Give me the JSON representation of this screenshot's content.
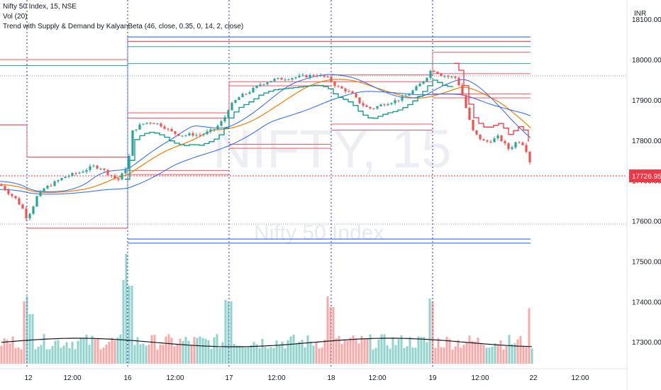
{
  "legend": {
    "symbol": "Nifty 50 Index, 15, NSE",
    "volume": "Vol (20)",
    "indicator": "Trend with Supply & Demand by KalyanBeta (46, close, 0.35, 0, 14, 2, close)"
  },
  "watermark": {
    "ticker": "NIFTY, 15",
    "name": "Nifty 50 Index"
  },
  "currency": "INR",
  "last_price_label": "17726.95",
  "colors": {
    "up": "#26a69a",
    "down": "#ef5350",
    "supply": "#f23645",
    "demand": "#2962ff",
    "trend_up": "#089981",
    "ema_orange": "#f57c00",
    "ema_blue": "#2962ff",
    "volume_ma": "#131722",
    "session_line": "#2a2ed8"
  },
  "chart_data": {
    "type": "candlestick",
    "title": "Nifty 50 Index, 15, NSE",
    "interval": "15",
    "x_tick_labels": [
      "12",
      "12:00",
      "16",
      "12:00",
      "17",
      "12:00",
      "18",
      "12:00",
      "19",
      "12:00",
      "22",
      "12:00"
    ],
    "y_tick_labels": [
      "18100.00",
      "18000.00",
      "17900.00",
      "17800.00",
      "17700.00",
      "17600.00",
      "17500.00",
      "17400.00",
      "17300.00"
    ],
    "ylim": [
      17260,
      18130
    ],
    "last_price": 17726.95,
    "sessions": [
      "12",
      "16",
      "17",
      "18",
      "19"
    ],
    "price_close_path": [
      [
        0,
        17690
      ],
      [
        12,
        17670
      ],
      [
        22,
        17655
      ],
      [
        32,
        17630
      ],
      [
        37,
        17610
      ],
      [
        44,
        17625
      ],
      [
        52,
        17660
      ],
      [
        62,
        17680
      ],
      [
        72,
        17690
      ],
      [
        82,
        17700
      ],
      [
        92,
        17710
      ],
      [
        102,
        17715
      ],
      [
        112,
        17720
      ],
      [
        122,
        17728
      ],
      [
        132,
        17735
      ],
      [
        142,
        17732
      ],
      [
        150,
        17720
      ],
      [
        158,
        17712
      ],
      [
        166,
        17700
      ],
      [
        172,
        17715
      ],
      [
        178,
        17735
      ],
      [
        182,
        17760
      ],
      [
        186,
        17820
      ],
      [
        192,
        17830
      ],
      [
        200,
        17840
      ],
      [
        210,
        17845
      ],
      [
        220,
        17842
      ],
      [
        230,
        17835
      ],
      [
        240,
        17822
      ],
      [
        250,
        17815
      ],
      [
        260,
        17812
      ],
      [
        270,
        17815
      ],
      [
        280,
        17812
      ],
      [
        290,
        17818
      ],
      [
        300,
        17825
      ],
      [
        310,
        17840
      ],
      [
        318,
        17860
      ],
      [
        322,
        17878
      ],
      [
        330,
        17895
      ],
      [
        338,
        17908
      ],
      [
        346,
        17915
      ],
      [
        356,
        17925
      ],
      [
        366,
        17938
      ],
      [
        376,
        17945
      ],
      [
        386,
        17950
      ],
      [
        396,
        17952
      ],
      [
        406,
        17954
      ],
      [
        416,
        17956
      ],
      [
        426,
        17958
      ],
      [
        436,
        17960
      ],
      [
        446,
        17962
      ],
      [
        456,
        17958
      ],
      [
        464,
        17952
      ],
      [
        470,
        17940
      ],
      [
        478,
        17930
      ],
      [
        486,
        17925
      ],
      [
        496,
        17915
      ],
      [
        506,
        17895
      ],
      [
        516,
        17882
      ],
      [
        524,
        17878
      ],
      [
        534,
        17885
      ],
      [
        544,
        17892
      ],
      [
        554,
        17896
      ],
      [
        564,
        17902
      ],
      [
        574,
        17912
      ],
      [
        584,
        17925
      ],
      [
        594,
        17942
      ],
      [
        604,
        17962
      ],
      [
        608,
        17975
      ],
      [
        614,
        17972
      ],
      [
        622,
        17962
      ],
      [
        632,
        17958
      ],
      [
        642,
        17955
      ],
      [
        648,
        17935
      ],
      [
        654,
        17900
      ],
      [
        660,
        17860
      ],
      [
        666,
        17825
      ],
      [
        674,
        17808
      ],
      [
        684,
        17795
      ],
      [
        694,
        17800
      ],
      [
        702,
        17808
      ],
      [
        710,
        17795
      ],
      [
        716,
        17778
      ],
      [
        722,
        17785
      ],
      [
        730,
        17800
      ],
      [
        738,
        17790
      ],
      [
        744,
        17768
      ],
      [
        750,
        17727
      ]
    ],
    "series": [
      {
        "name": "Vol (20)",
        "kind": "volume",
        "values": []
      }
    ],
    "levels": {
      "supply": [
        18050,
        18045,
        18030,
        17960,
        17940,
        17920,
        17870,
        17860,
        17850,
        17840,
        17820,
        17760,
        17740,
        17640,
        17630,
        17600,
        17580
      ],
      "demand": [
        18050,
        18040,
        17550,
        17545
      ],
      "trend": [
        17990,
        17985,
        17978
      ]
    }
  }
}
